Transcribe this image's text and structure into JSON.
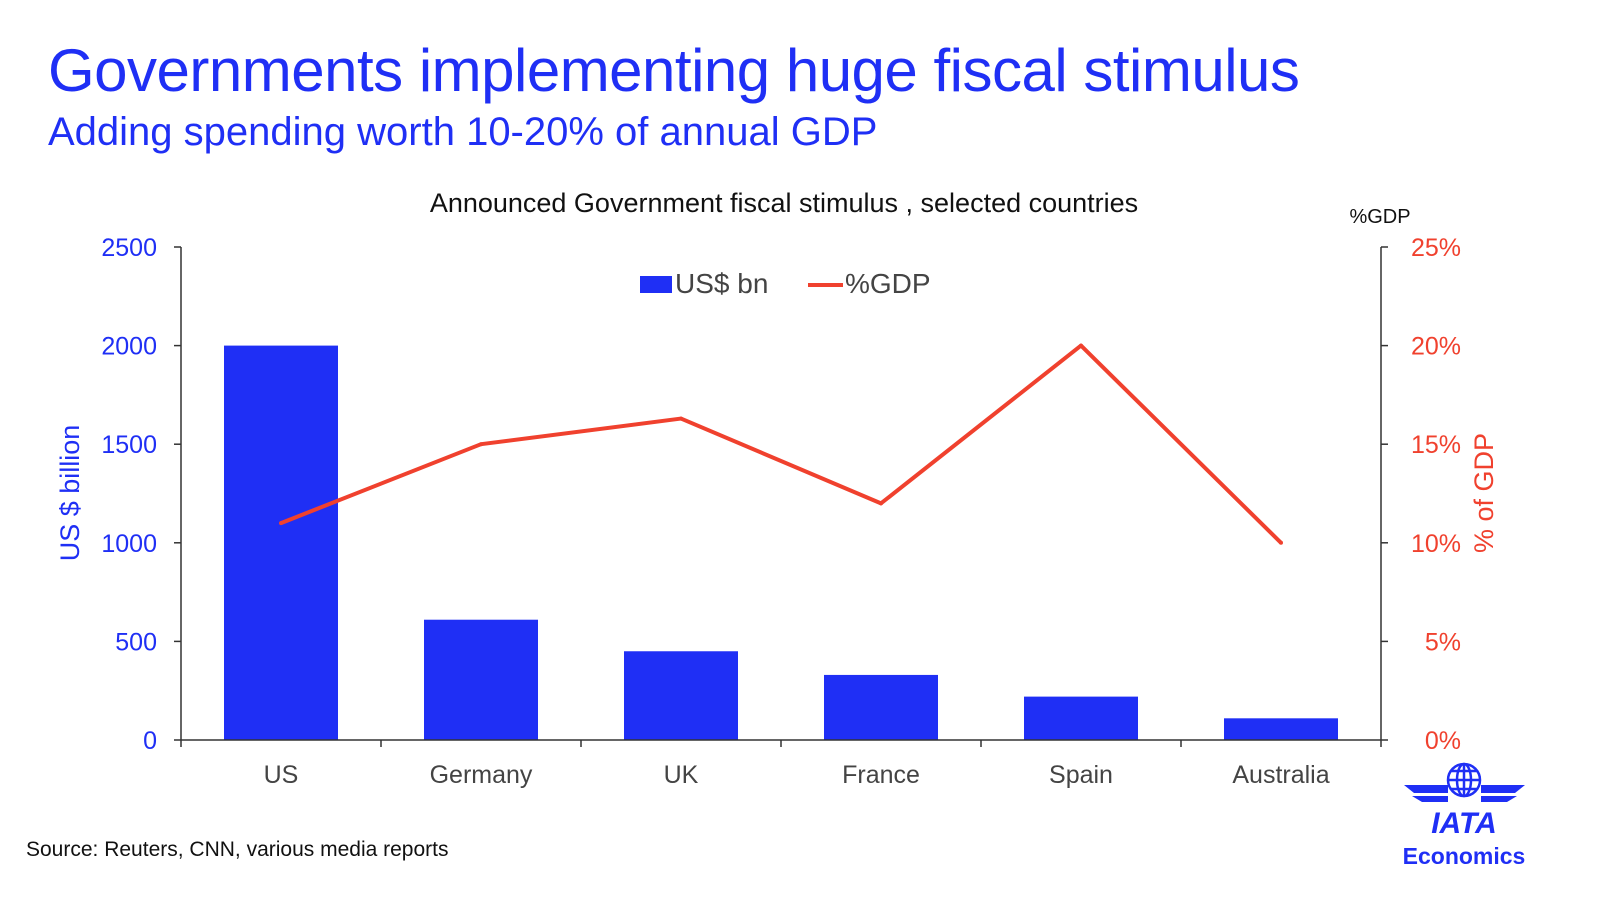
{
  "slide": {
    "title": "Governments implementing huge fiscal stimulus",
    "subtitle": "Adding spending worth 10-20% of annual GDP",
    "source": "Source: Reuters, CNN, various media reports"
  },
  "logo": {
    "name": "IATA",
    "sub": "Economics",
    "icon": "globe-icon"
  },
  "colors": {
    "brand": "#1f2ff5",
    "bar": "#1f2ff5",
    "line": "#f0412e",
    "axis": "#333333"
  },
  "chart_data": {
    "type": "bar",
    "title": "Announced Government fiscal stimulus , selected countries",
    "categories": [
      "US",
      "Germany",
      "UK",
      "France",
      "Spain",
      "Australia"
    ],
    "series": [
      {
        "name": "US$ bn",
        "type": "bar",
        "axis": "left",
        "values": [
          2000,
          610,
          450,
          330,
          220,
          110
        ]
      },
      {
        "name": "%GDP",
        "type": "line",
        "axis": "right",
        "values": [
          11,
          15,
          16.3,
          12,
          20,
          10
        ]
      }
    ],
    "ylabel": "US $ billion",
    "ylim": [
      0,
      2500
    ],
    "yticks": [
      0,
      500,
      1000,
      1500,
      2000,
      2500
    ],
    "y2label": "% of GDP",
    "y2title": "%GDP",
    "y2lim": [
      0,
      25
    ],
    "y2ticks": [
      "0%",
      "5%",
      "10%",
      "15%",
      "20%",
      "25%"
    ],
    "legend": "top-center",
    "grid": false
  }
}
